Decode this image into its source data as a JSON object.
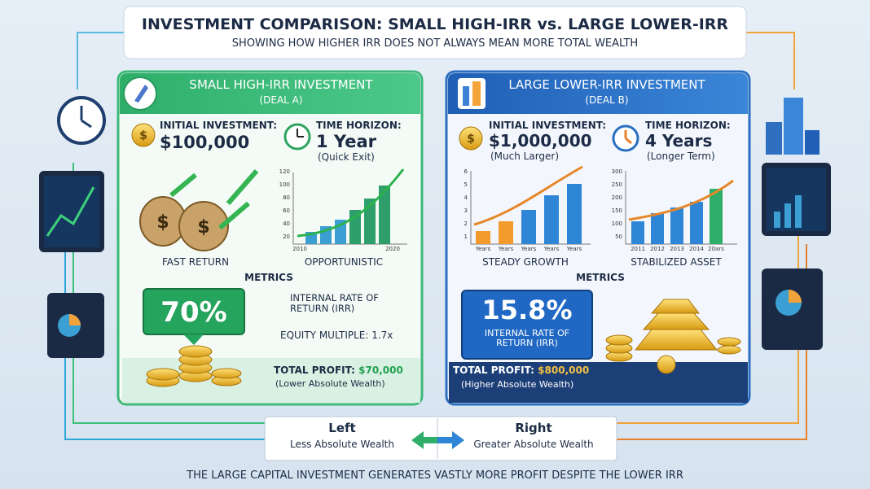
{
  "header": {
    "title": "INVESTMENT COMPARISON: SMALL HIGH-IRR vs. LARGE LOWER-IRR",
    "subtitle": "SHOWING HOW HIGHER IRR DOES NOT ALWAYS MEAN MORE TOTAL WEALTH"
  },
  "deal_a": {
    "title": "SMALL HIGH-IRR INVESTMENT",
    "subtitle": "(DEAL A)",
    "investment_label": "INITIAL INVESTMENT:",
    "investment": "$100,000",
    "horizon_label": "TIME HORIZON:",
    "horizon": "1 Year",
    "horizon_note": "(Quick Exit)",
    "chart_yticks": [
      "120",
      "100",
      "80",
      "60",
      "40",
      "20"
    ],
    "chart_xticks": [
      "2010",
      "2020"
    ],
    "caption_left": "FAST RETURN",
    "caption_right": "OPPORTUNISTIC",
    "metrics": "METRICS",
    "irr": "70%",
    "irr_label": "INTERNAL RATE OF RETURN (IRR)",
    "equity_multiple": "EQUITY MULTIPLE: 1.7x",
    "profit_label": "TOTAL PROFIT:",
    "profit": "$70,000",
    "profit_note": "(Lower Absolute Wealth)"
  },
  "deal_b": {
    "title": "LARGE LOWER-IRR INVESTMENT",
    "subtitle": "(DEAL B)",
    "investment_label": "INITIAL INVESTMENT:",
    "investment": "$1,000,000",
    "investment_note": "(Much Larger)",
    "horizon_label": "TIME HORIZON:",
    "horizon": "4 Years",
    "horizon_note": "(Longer Term)",
    "chart1_yticks": [
      "6",
      "5",
      "4",
      "3",
      "2",
      "1"
    ],
    "chart1_xticks": [
      "Years",
      "Years",
      "Years",
      "Years",
      "Years"
    ],
    "chart2_yticks": [
      "300",
      "250",
      "200",
      "150",
      "100",
      "50"
    ],
    "chart2_xticks": [
      "2011",
      "2012",
      "2013",
      "2014",
      "20ars"
    ],
    "caption_left": "STEADY GROWTH",
    "caption_right": "STABILIZED ASSET",
    "metrics": "METRICS",
    "irr": "15.8%",
    "irr_label": "INTERNAL RATE OF RETURN (IRR)",
    "profit_label": "TOTAL PROFIT:",
    "profit": "$800,000",
    "profit_note": "(Higher Absolute Wealth)"
  },
  "footer": {
    "left_title": "Left",
    "left_text": "Less Absolute Wealth",
    "right_title": "Right",
    "right_text": "Greater Absolute Wealth",
    "conclusion": "THE LARGE CAPITAL INVESTMENT GENERATES VASTLY MORE PROFIT DESPITE THE LOWER IRR"
  }
}
